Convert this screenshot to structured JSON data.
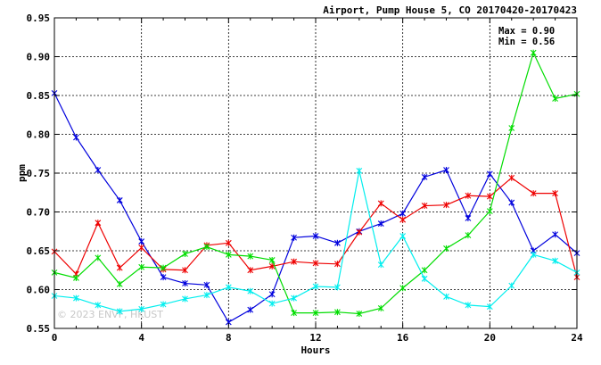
{
  "chart_data": {
    "type": "line",
    "title": "Airport, Pump House 5, CO 20170420-20170423",
    "xlabel": "Hours",
    "ylabel": "ppm",
    "xlim": [
      0,
      24
    ],
    "ylim": [
      0.55,
      0.95
    ],
    "xticks": [
      0,
      4,
      8,
      12,
      16,
      20,
      24
    ],
    "xtick_labels": [
      "0",
      "4",
      "8",
      "12",
      "16",
      "20",
      "24"
    ],
    "yticks": [
      0.55,
      0.6,
      0.65,
      0.7,
      0.75,
      0.8,
      0.85,
      0.9,
      0.95
    ],
    "ytick_labels": [
      "0.55",
      "0.60",
      "0.65",
      "0.70",
      "0.75",
      "0.80",
      "0.85",
      "0.90",
      "0.95"
    ],
    "grid": true,
    "max_label": "Max = 0.90",
    "min_label": "Min = 0.56",
    "watermark": "© 2023 ENVF, HKUST",
    "x": [
      0,
      1,
      2,
      3,
      4,
      5,
      6,
      7,
      8,
      9,
      10,
      11,
      12,
      13,
      14,
      15,
      16,
      17,
      18,
      19,
      20,
      21,
      22,
      23,
      24
    ],
    "series": [
      {
        "color": "#0000dd",
        "values": [
          0.853,
          0.796,
          0.754,
          0.715,
          0.662,
          0.616,
          0.608,
          0.606,
          0.558,
          0.574,
          0.594,
          0.667,
          0.669,
          0.66,
          0.675,
          0.685,
          0.698,
          0.745,
          0.754,
          0.692,
          0.749,
          0.712,
          0.65,
          0.671,
          0.647
        ]
      },
      {
        "color": "#ee0000",
        "values": [
          0.649,
          0.62,
          0.686,
          0.628,
          0.654,
          0.626,
          0.625,
          0.657,
          0.66,
          0.625,
          0.63,
          0.636,
          0.634,
          0.633,
          0.674,
          0.711,
          0.69,
          0.708,
          0.709,
          0.721,
          0.72,
          0.744,
          0.724,
          0.724,
          0.616
        ]
      },
      {
        "color": "#00dd00",
        "values": [
          0.622,
          0.615,
          0.641,
          0.607,
          0.629,
          0.628,
          0.646,
          0.655,
          0.645,
          0.643,
          0.638,
          0.57,
          0.57,
          0.571,
          0.569,
          0.576,
          0.602,
          0.625,
          0.653,
          0.67,
          0.701,
          0.808,
          0.905,
          0.846,
          0.852
        ]
      },
      {
        "color": "#00eeee",
        "values": [
          0.592,
          0.589,
          0.58,
          0.572,
          0.575,
          0.581,
          0.588,
          0.593,
          0.603,
          0.598,
          0.582,
          0.589,
          0.604,
          0.603,
          0.753,
          0.632,
          0.669,
          0.614,
          0.591,
          0.58,
          0.578,
          0.605,
          0.645,
          0.637,
          0.622
        ]
      }
    ]
  }
}
